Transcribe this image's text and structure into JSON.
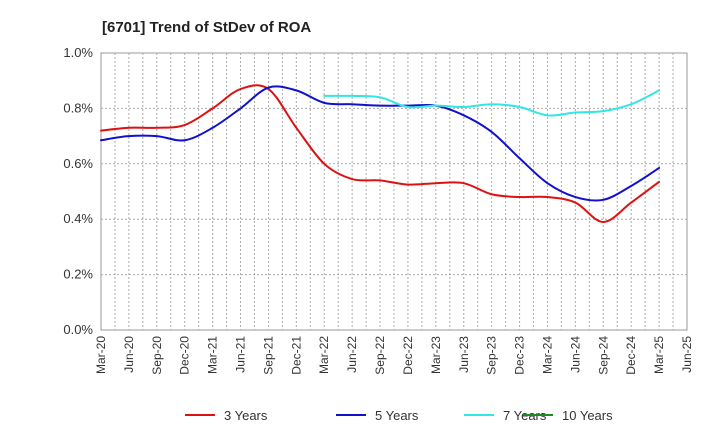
{
  "chart_data": {
    "type": "line",
    "title": "[6701]  Trend of StDev of ROA",
    "xlabel": "",
    "ylabel": "",
    "ylim": [
      0,
      1.0
    ],
    "y_ticks": [
      "0.0%",
      "0.2%",
      "0.4%",
      "0.6%",
      "0.8%",
      "1.0%"
    ],
    "x_ticks": [
      "Mar-20",
      "Jun-20",
      "Sep-20",
      "Dec-20",
      "Mar-21",
      "Jun-21",
      "Sep-21",
      "Dec-21",
      "Mar-22",
      "Jun-22",
      "Sep-22",
      "Dec-22",
      "Mar-23",
      "Jun-23",
      "Sep-23",
      "Dec-23",
      "Mar-24",
      "Jun-24",
      "Sep-24",
      "Dec-24",
      "Mar-25",
      "Jun-25"
    ],
    "grid": true,
    "legend_position": "bottom",
    "series": [
      {
        "name": "3 Years",
        "color": "#dd1111",
        "x": [
          "Mar-20",
          "Jun-20",
          "Sep-20",
          "Dec-20",
          "Mar-21",
          "Jun-21",
          "Sep-21",
          "Dec-21",
          "Mar-22",
          "Jun-22",
          "Sep-22",
          "Dec-22",
          "Mar-23",
          "Jun-23",
          "Sep-23",
          "Dec-23",
          "Mar-24",
          "Jun-24",
          "Sep-24",
          "Dec-24",
          "Mar-25"
        ],
        "values": [
          0.72,
          0.73,
          0.73,
          0.74,
          0.8,
          0.87,
          0.87,
          0.73,
          0.6,
          0.545,
          0.54,
          0.525,
          0.53,
          0.53,
          0.49,
          0.48,
          0.48,
          0.46,
          0.39,
          0.46,
          0.535
        ]
      },
      {
        "name": "5 Years",
        "color": "#1111cc",
        "x": [
          "Mar-20",
          "Jun-20",
          "Sep-20",
          "Dec-20",
          "Mar-21",
          "Jun-21",
          "Sep-21",
          "Dec-21",
          "Mar-22",
          "Jun-22",
          "Sep-22",
          "Dec-22",
          "Mar-23",
          "Jun-23",
          "Sep-23",
          "Dec-23",
          "Mar-24",
          "Jun-24",
          "Sep-24",
          "Dec-24",
          "Mar-25"
        ],
        "values": [
          0.685,
          0.7,
          0.7,
          0.685,
          0.73,
          0.8,
          0.875,
          0.865,
          0.82,
          0.815,
          0.81,
          0.81,
          0.81,
          0.775,
          0.715,
          0.62,
          0.53,
          0.48,
          0.47,
          0.52,
          0.585
        ]
      },
      {
        "name": "7 Years",
        "color": "#33e6e6",
        "x": [
          "Mar-22",
          "Jun-22",
          "Sep-22",
          "Dec-22",
          "Mar-23",
          "Jun-23",
          "Sep-23",
          "Dec-23",
          "Mar-24",
          "Jun-24",
          "Sep-24",
          "Dec-24",
          "Mar-25"
        ],
        "values": [
          0.845,
          0.845,
          0.84,
          0.805,
          0.81,
          0.805,
          0.815,
          0.805,
          0.775,
          0.785,
          0.79,
          0.815,
          0.865
        ]
      },
      {
        "name": "10 Years",
        "color": "#228822",
        "x": [],
        "values": []
      }
    ]
  }
}
